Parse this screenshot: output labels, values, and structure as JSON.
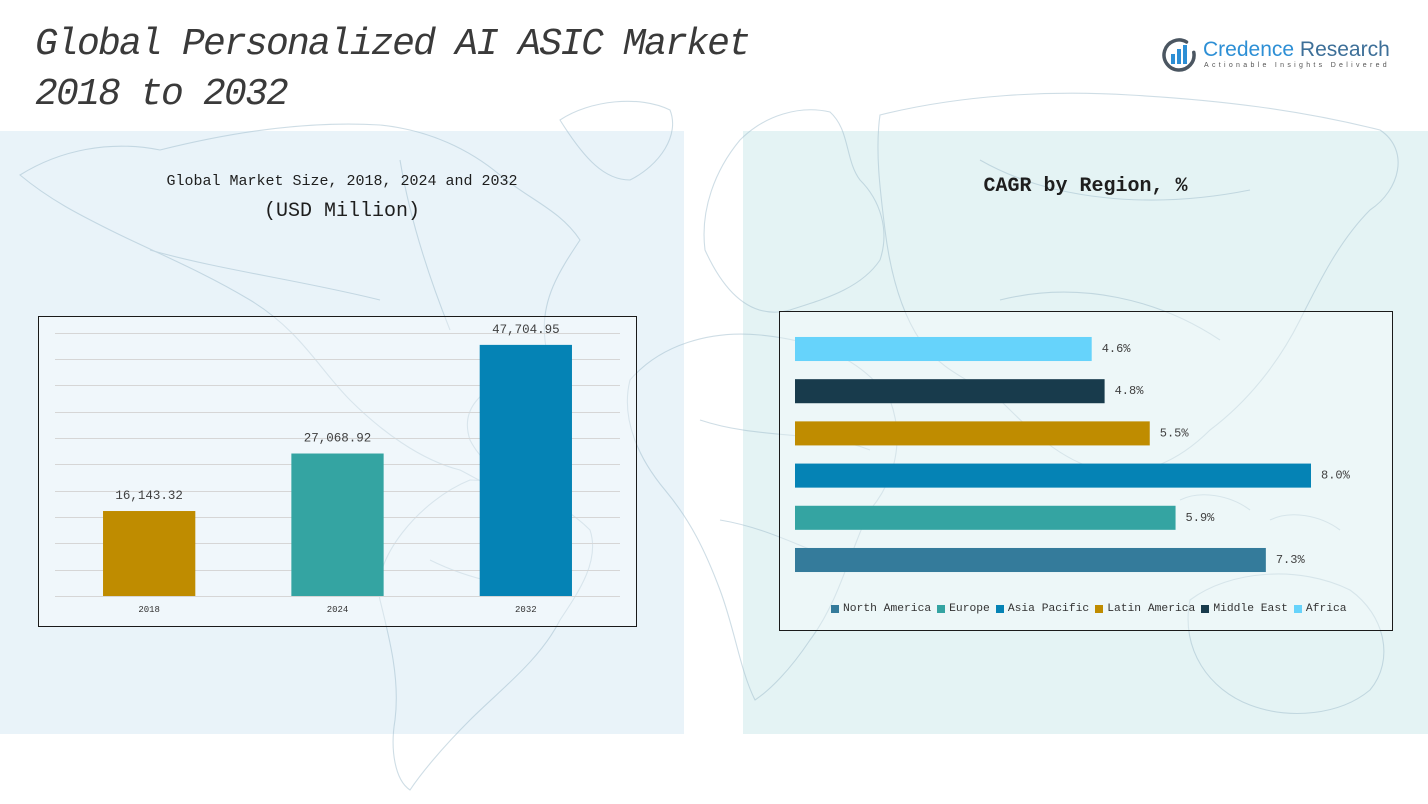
{
  "header": {
    "title_line1": "Global Personalized AI ASIC Market",
    "title_line2": "2018 to 2032"
  },
  "logo": {
    "icon": "bar-chart-ring-icon",
    "name_primary": "Credence",
    "name_secondary": "Research",
    "tagline": "Actionable Insights Delivered",
    "colors": {
      "primary": "#2d8fd5",
      "secondary": "#3d6f98",
      "ring": "#4b5661"
    }
  },
  "chart_data": [
    {
      "type": "bar",
      "title": "Global Market Size, 2018, 2024 and 2032",
      "subtitle": "(USD Million)",
      "xlabel": "",
      "ylabel": "",
      "categories": [
        "2018",
        "2024",
        "2032"
      ],
      "values": [
        16143.32,
        27068.92,
        47704.95
      ],
      "value_labels": [
        "16,143.32",
        "27,068.92",
        "47,704.95"
      ],
      "colors": [
        "#bf8c00",
        "#34a4a2",
        "#0583b5"
      ],
      "ylim": [
        0,
        50000
      ],
      "grid": true
    },
    {
      "type": "bar",
      "orientation": "horizontal",
      "title": "CAGR by Region, %",
      "xlabel": "",
      "ylabel": "",
      "categories": [
        "North America",
        "Europe",
        "Asia Pacific",
        "Latin America",
        "Middle East",
        "Africa"
      ],
      "values": [
        7.3,
        5.9,
        8.0,
        5.5,
        4.8,
        4.6
      ],
      "value_labels": [
        "7.3%",
        "5.9%",
        "8.0%",
        "5.5%",
        "4.8%",
        "4.6%"
      ],
      "colors": [
        "#347b9b",
        "#34a4a2",
        "#0583b5",
        "#bf8c00",
        "#183b4c",
        "#66d3fb"
      ],
      "xlim": [
        0,
        9
      ],
      "grid": false,
      "legend": "bottom"
    }
  ]
}
